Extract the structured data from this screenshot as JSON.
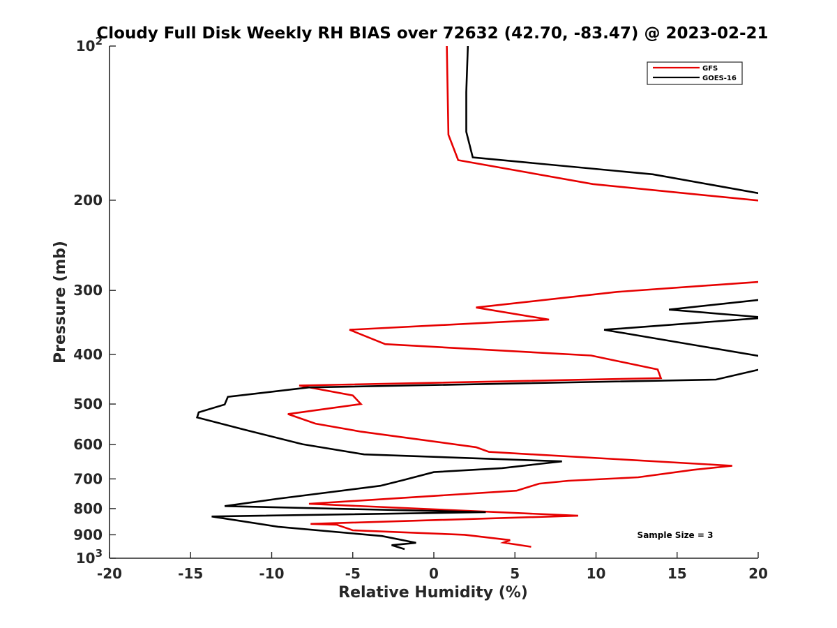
{
  "chart_data": {
    "type": "line",
    "title": "Cloudy Full Disk Weekly RH BIAS over 72632 (42.70, -83.47) @ 2023-02-21",
    "xlabel": "Relative Humidity (%)",
    "ylabel": "Pressure (mb)",
    "xlim": [
      -20,
      20
    ],
    "ylim": [
      100,
      1000
    ],
    "y_scale": "log",
    "y_reversed": true,
    "xticks": [
      -20,
      -15,
      -10,
      -5,
      0,
      5,
      10,
      15,
      20
    ],
    "xtick_labels": [
      "-20",
      "-15",
      "-10",
      "-5",
      "0",
      "5",
      "10",
      "15",
      "20"
    ],
    "yticks": [
      100,
      200,
      300,
      400,
      500,
      600,
      700,
      800,
      900,
      1000
    ],
    "ytick_labels": [
      {
        "base": "10",
        "exp": "2"
      },
      {
        "base": "200",
        "exp": ""
      },
      {
        "base": "300",
        "exp": ""
      },
      {
        "base": "400",
        "exp": ""
      },
      {
        "base": "500",
        "exp": ""
      },
      {
        "base": "600",
        "exp": ""
      },
      {
        "base": "700",
        "exp": ""
      },
      {
        "base": "800",
        "exp": ""
      },
      {
        "base": "900",
        "exp": ""
      },
      {
        "base": "10",
        "exp": "3"
      }
    ],
    "grid": false,
    "legend_position": "top-right",
    "series": [
      {
        "name": "GFS",
        "color": "#e60000",
        "x": [
          0.8,
          0.9,
          1.5,
          9.8,
          20.5,
          null,
          20.5,
          11.3,
          2.6,
          7.1,
          -5.2,
          -3.0,
          9.7,
          13.8,
          14.0,
          -8.3,
          -5.0,
          -4.5,
          -9.0,
          -7.3,
          -4.5,
          2.6,
          3.4,
          18.4,
          16.0,
          12.6,
          8.3,
          6.5,
          5.1,
          -7.7,
          8.9,
          -7.6,
          -6.0,
          -5.0,
          1.9,
          4.7,
          4.3,
          6.0
        ],
        "y": [
          100,
          149,
          167,
          186,
          201,
          null,
          288,
          302,
          324,
          342,
          358,
          382,
          402,
          428,
          445,
          460,
          481,
          500,
          523,
          546,
          566,
          607,
          620,
          660,
          672,
          695,
          706,
          715,
          738,
          783,
          826,
          857,
          860,
          882,
          900,
          922,
          932,
          950
        ]
      },
      {
        "name": "GOES-16",
        "color": "#000000",
        "x": [
          2.1,
          2.0,
          2.0,
          2.4,
          13.5,
          20.5,
          null,
          20.5,
          14.5,
          20.5,
          10.5,
          16.6,
          20.5,
          null,
          20.5,
          17.4,
          -7.7,
          -12.7,
          -12.9,
          -14.5,
          -14.6,
          -11.6,
          -8.1,
          -4.3,
          7.9,
          4.2,
          0.0,
          -1.9,
          -3.3,
          -9.7,
          -12.9,
          3.2,
          -13.7,
          -9.6,
          -3.2,
          -1.1,
          -2.6,
          -1.8
        ],
        "y": [
          100,
          123,
          147,
          165,
          178,
          195,
          null,
          312,
          327,
          339,
          358,
          386,
          405,
          null,
          425,
          448,
          464,
          484,
          501,
          519,
          531,
          562,
          599,
          627,
          647,
          667,
          679,
          704,
          722,
          766,
          791,
          813,
          829,
          868,
          905,
          933,
          943,
          960
        ]
      }
    ],
    "annotations": [
      "Sample Size = 3"
    ]
  }
}
